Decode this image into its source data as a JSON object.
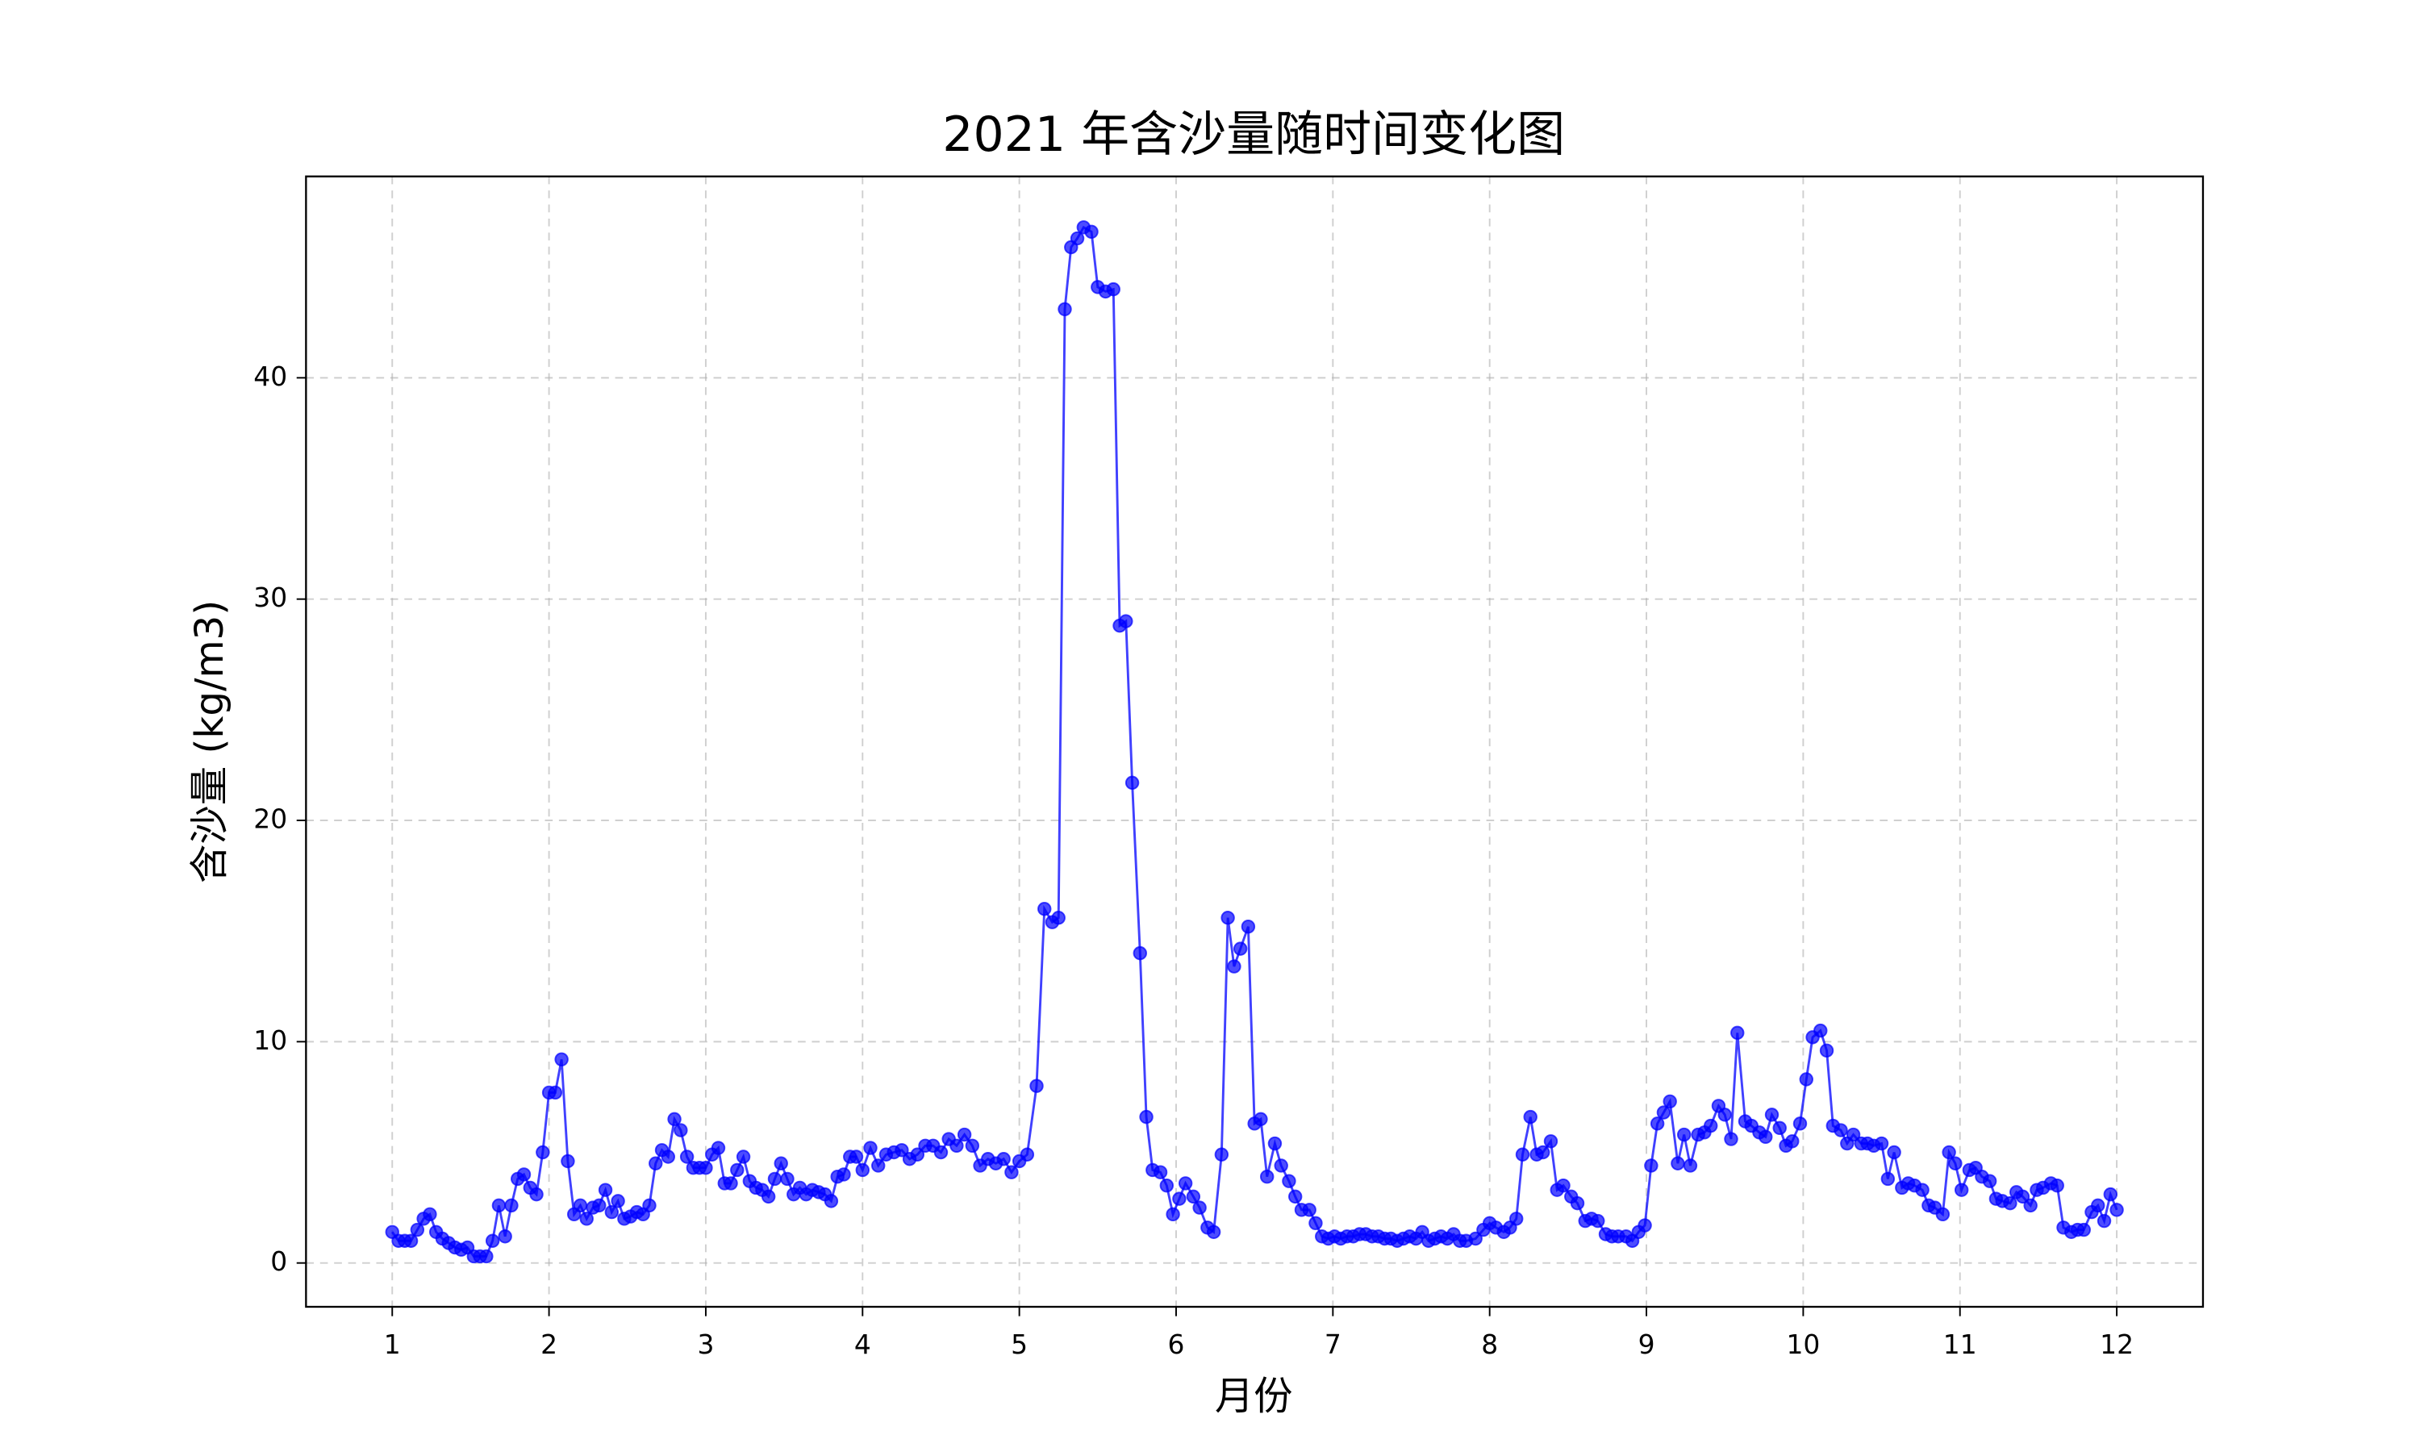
{
  "chart_data": {
    "type": "line",
    "title": "2021 年含沙量随时间变化图",
    "xlabel": "月份",
    "ylabel": "含沙量 (kg/m3)",
    "color": "#0000ff",
    "markers": true,
    "grid": true,
    "xlim": [
      0.45,
      12.55
    ],
    "ylim": [
      -1.98,
      49.1
    ],
    "xticks": [
      1,
      2,
      3,
      4,
      5,
      6,
      7,
      8,
      9,
      10,
      11,
      12
    ],
    "yticks": [
      0,
      10,
      20,
      30,
      40
    ],
    "x": [
      1.0,
      1.04,
      1.08,
      1.12,
      1.16,
      1.2,
      1.24,
      1.28,
      1.32,
      1.36,
      1.4,
      1.44,
      1.48,
      1.52,
      1.56,
      1.6,
      1.64,
      1.68,
      1.72,
      1.76,
      1.8,
      1.84,
      1.88,
      1.92,
      1.96,
      2.0,
      2.04,
      2.08,
      2.12,
      2.16,
      2.2,
      2.24,
      2.28,
      2.32,
      2.36,
      2.4,
      2.44,
      2.48,
      2.52,
      2.56,
      2.6,
      2.64,
      2.68,
      2.72,
      2.76,
      2.8,
      2.84,
      2.88,
      2.92,
      2.96,
      3.0,
      3.04,
      3.08,
      3.12,
      3.16,
      3.2,
      3.24,
      3.28,
      3.32,
      3.36,
      3.4,
      3.44,
      3.48,
      3.52,
      3.56,
      3.6,
      3.64,
      3.68,
      3.72,
      3.76,
      3.8,
      3.84,
      3.88,
      3.92,
      3.96,
      4.0,
      4.05,
      4.1,
      4.15,
      4.2,
      4.25,
      4.3,
      4.35,
      4.4,
      4.45,
      4.5,
      4.55,
      4.6,
      4.65,
      4.7,
      4.75,
      4.8,
      4.85,
      4.9,
      4.95,
      5.0,
      5.05,
      5.11,
      5.16,
      5.21,
      5.25,
      5.29,
      5.33,
      5.37,
      5.41,
      5.46,
      5.5,
      5.55,
      5.6,
      5.64,
      5.68,
      5.72,
      5.77,
      5.81,
      5.85,
      5.9,
      5.94,
      5.98,
      6.02,
      6.06,
      6.11,
      6.15,
      6.2,
      6.24,
      6.29,
      6.33,
      6.37,
      6.41,
      6.46,
      6.5,
      6.54,
      6.58,
      6.63,
      6.67,
      6.72,
      6.76,
      6.8,
      6.85,
      6.89,
      6.93,
      6.97,
      7.01,
      7.05,
      7.09,
      7.13,
      7.17,
      7.21,
      7.25,
      7.29,
      7.33,
      7.37,
      7.41,
      7.45,
      7.49,
      7.53,
      7.57,
      7.61,
      7.65,
      7.69,
      7.73,
      7.77,
      7.81,
      7.85,
      7.91,
      7.96,
      8.0,
      8.04,
      8.09,
      8.13,
      8.17,
      8.21,
      8.26,
      8.3,
      8.34,
      8.39,
      8.43,
      8.47,
      8.52,
      8.56,
      8.61,
      8.65,
      8.69,
      8.74,
      8.78,
      8.82,
      8.87,
      8.91,
      8.95,
      8.99,
      9.03,
      9.07,
      9.11,
      9.15,
      9.2,
      9.24,
      9.28,
      9.33,
      9.37,
      9.41,
      9.46,
      9.5,
      9.54,
      9.58,
      9.63,
      9.67,
      9.72,
      9.76,
      9.8,
      9.85,
      9.89,
      9.93,
      9.98,
      10.02,
      10.06,
      10.11,
      10.15,
      10.19,
      10.24,
      10.28,
      10.32,
      10.37,
      10.41,
      10.45,
      10.5,
      10.54,
      10.58,
      10.63,
      10.67,
      10.71,
      10.76,
      10.8,
      10.84,
      10.89,
      10.93,
      10.97,
      11.01,
      11.06,
      11.1,
      11.14,
      11.19,
      11.23,
      11.27,
      11.32,
      11.36,
      11.4,
      11.45,
      11.49,
      11.53,
      11.58,
      11.62,
      11.66,
      11.71,
      11.75,
      11.79,
      11.84,
      11.88,
      11.92,
      11.96,
      12.0
    ],
    "values": [
      1.4,
      1.0,
      1.0,
      1.0,
      1.5,
      2.0,
      2.2,
      1.4,
      1.1,
      0.9,
      0.7,
      0.6,
      0.7,
      0.3,
      0.3,
      0.3,
      1.0,
      2.6,
      1.2,
      2.6,
      3.8,
      4.0,
      3.4,
      3.1,
      5.0,
      7.7,
      7.7,
      9.2,
      4.6,
      2.2,
      2.6,
      2.0,
      2.5,
      2.6,
      3.3,
      2.3,
      2.8,
      2.0,
      2.1,
      2.3,
      2.2,
      2.6,
      4.5,
      5.1,
      4.8,
      6.5,
      6.0,
      4.8,
      4.3,
      4.3,
      4.3,
      4.9,
      5.2,
      3.6,
      3.6,
      4.2,
      4.8,
      3.7,
      3.4,
      3.3,
      3.0,
      3.8,
      4.5,
      3.8,
      3.1,
      3.4,
      3.1,
      3.3,
      3.2,
      3.1,
      2.8,
      3.9,
      4.0,
      4.8,
      4.8,
      4.2,
      5.2,
      4.4,
      4.9,
      5.0,
      5.1,
      4.7,
      4.9,
      5.3,
      5.3,
      5.0,
      5.6,
      5.3,
      5.8,
      5.3,
      4.4,
      4.7,
      4.5,
      4.7,
      4.1,
      4.6,
      4.9,
      8.0,
      16.0,
      15.4,
      15.6,
      43.1,
      45.9,
      46.3,
      46.8,
      46.6,
      44.1,
      43.9,
      44.0,
      28.8,
      29.0,
      21.7,
      14.0,
      6.6,
      4.2,
      4.1,
      3.5,
      2.2,
      2.9,
      3.6,
      3.0,
      2.5,
      1.6,
      1.4,
      4.9,
      15.6,
      13.4,
      14.2,
      15.2,
      6.3,
      6.5,
      3.9,
      5.4,
      4.4,
      3.7,
      3.0,
      2.4,
      2.4,
      1.8,
      1.2,
      1.1,
      1.2,
      1.1,
      1.2,
      1.2,
      1.3,
      1.3,
      1.2,
      1.2,
      1.1,
      1.1,
      1.0,
      1.1,
      1.2,
      1.1,
      1.4,
      1.0,
      1.1,
      1.2,
      1.1,
      1.3,
      1.0,
      1.0,
      1.1,
      1.5,
      1.8,
      1.6,
      1.4,
      1.6,
      2.0,
      4.9,
      6.6,
      4.9,
      5.0,
      5.5,
      3.3,
      3.5,
      3.0,
      2.7,
      1.9,
      2.0,
      1.9,
      1.3,
      1.2,
      1.2,
      1.2,
      1.0,
      1.4,
      1.7,
      4.4,
      6.3,
      6.8,
      7.3,
      4.5,
      5.8,
      4.4,
      5.8,
      5.9,
      6.2,
      7.1,
      6.7,
      5.6,
      10.4,
      6.4,
      6.2,
      5.9,
      5.7,
      6.7,
      6.1,
      5.3,
      5.5,
      6.3,
      8.3,
      10.2,
      10.5,
      9.6,
      6.2,
      6.0,
      5.4,
      5.8,
      5.4,
      5.4,
      5.3,
      5.4,
      3.8,
      5.0,
      3.4,
      3.6,
      3.5,
      3.3,
      2.6,
      2.5,
      2.2,
      5.0,
      4.5,
      3.3,
      4.2,
      4.3,
      3.9,
      3.7,
      2.9,
      2.8,
      2.7,
      3.2,
      3.0,
      2.6,
      3.3,
      3.4,
      3.6,
      3.5,
      1.6,
      1.4,
      1.5,
      1.5,
      2.3,
      2.6,
      1.9,
      3.1,
      2.4
    ]
  }
}
